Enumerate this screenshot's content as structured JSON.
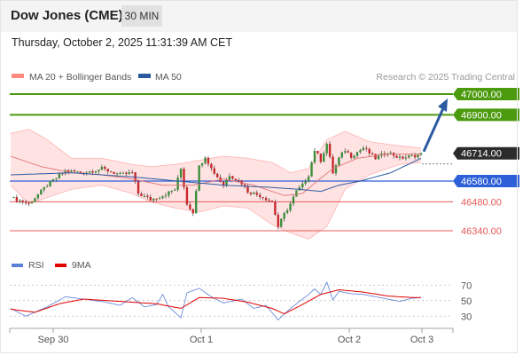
{
  "header": {
    "title": "Dow Jones (CME)",
    "timeframe": "30 MIN"
  },
  "timestamp": "Thursday, October 2, 2025 11:31:39 AM CET",
  "legend": {
    "ma_bb": "MA 20 + Bollinger Bands",
    "ma50": "MA 50",
    "credit": "Research © 2025 Trading Central",
    "rsi": "RSI",
    "ma9": "9MA"
  },
  "colors": {
    "up": "#3b8f3b",
    "down": "#c8282d",
    "ma20_band": "#ff8a80",
    "ma50": "#2c5aa0",
    "resistance": "#4c9a0e",
    "pivot": "#2d5fd8",
    "support": "#e85a5a",
    "rsi": "#5b7fd6",
    "rsi_ma": "#e00000"
  },
  "chart_data": [
    {
      "type": "candlestick",
      "title": "Dow Jones (CME)",
      "y_range": [
        46250,
        47060
      ],
      "x_labels": [
        "Sep 30",
        "Oct 1",
        "Oct 2",
        "Oct 3"
      ],
      "last_price": 46714,
      "levels": [
        {
          "label": "47000.00",
          "value": 47000,
          "kind": "resistance"
        },
        {
          "label": "46900.00",
          "value": 46900,
          "kind": "resistance"
        },
        {
          "label": "46714.00",
          "value": 46714,
          "kind": "last"
        },
        {
          "label": "46580.00",
          "value": 46580,
          "kind": "pivot"
        },
        {
          "label": "46480.00",
          "value": 46480,
          "kind": "support"
        },
        {
          "label": "46340.00",
          "value": 46340,
          "kind": "support"
        }
      ],
      "forecast_target": 47000,
      "close_path": [
        [
          0,
          46500
        ],
        [
          6,
          46470
        ],
        [
          12,
          46560
        ],
        [
          18,
          46630
        ],
        [
          24,
          46620
        ],
        [
          30,
          46640
        ],
        [
          36,
          46610
        ],
        [
          40,
          46620
        ],
        [
          42,
          46520
        ],
        [
          46,
          46490
        ],
        [
          50,
          46510
        ],
        [
          54,
          46540
        ],
        [
          56,
          46640
        ],
        [
          58,
          46470
        ],
        [
          60,
          46430
        ],
        [
          62,
          46650
        ],
        [
          64,
          46700
        ],
        [
          66,
          46640
        ],
        [
          70,
          46560
        ],
        [
          72,
          46610
        ],
        [
          76,
          46570
        ],
        [
          78,
          46530
        ],
        [
          82,
          46510
        ],
        [
          86,
          46480
        ],
        [
          88,
          46360
        ],
        [
          90,
          46420
        ],
        [
          92,
          46470
        ],
        [
          94,
          46530
        ],
        [
          96,
          46560
        ],
        [
          98,
          46610
        ],
        [
          100,
          46730
        ],
        [
          102,
          46680
        ],
        [
          104,
          46760
        ],
        [
          106,
          46620
        ],
        [
          108,
          46690
        ],
        [
          110,
          46730
        ],
        [
          112,
          46700
        ],
        [
          116,
          46740
        ],
        [
          120,
          46690
        ],
        [
          124,
          46720
        ],
        [
          128,
          46690
        ],
        [
          132,
          46700
        ],
        [
          135,
          46710
        ]
      ],
      "ma20": [
        [
          0,
          46700
        ],
        [
          10,
          46650
        ],
        [
          20,
          46620
        ],
        [
          30,
          46610
        ],
        [
          40,
          46590
        ],
        [
          50,
          46560
        ],
        [
          60,
          46560
        ],
        [
          70,
          46590
        ],
        [
          80,
          46560
        ],
        [
          86,
          46530
        ],
        [
          90,
          46510
        ],
        [
          96,
          46520
        ],
        [
          100,
          46570
        ],
        [
          106,
          46640
        ],
        [
          114,
          46690
        ],
        [
          124,
          46710
        ],
        [
          135,
          46710
        ]
      ],
      "bb_upper": [
        [
          0,
          46810
        ],
        [
          6,
          46830
        ],
        [
          12,
          46780
        ],
        [
          20,
          46690
        ],
        [
          30,
          46690
        ],
        [
          40,
          46660
        ],
        [
          46,
          46650
        ],
        [
          54,
          46660
        ],
        [
          62,
          46680
        ],
        [
          70,
          46700
        ],
        [
          78,
          46690
        ],
        [
          86,
          46670
        ],
        [
          92,
          46620
        ],
        [
          98,
          46640
        ],
        [
          104,
          46780
        ],
        [
          110,
          46820
        ],
        [
          118,
          46770
        ],
        [
          128,
          46750
        ],
        [
          135,
          46740
        ]
      ],
      "bb_lower": [
        [
          0,
          46560
        ],
        [
          6,
          46470
        ],
        [
          12,
          46500
        ],
        [
          20,
          46540
        ],
        [
          30,
          46560
        ],
        [
          40,
          46520
        ],
        [
          46,
          46480
        ],
        [
          54,
          46450
        ],
        [
          62,
          46430
        ],
        [
          70,
          46460
        ],
        [
          78,
          46450
        ],
        [
          86,
          46370
        ],
        [
          92,
          46330
        ],
        [
          98,
          46300
        ],
        [
          104,
          46360
        ],
        [
          110,
          46540
        ],
        [
          118,
          46610
        ],
        [
          128,
          46660
        ],
        [
          135,
          46670
        ]
      ],
      "ma50": [
        [
          0,
          46610
        ],
        [
          20,
          46620
        ],
        [
          40,
          46600
        ],
        [
          55,
          46580
        ],
        [
          70,
          46560
        ],
        [
          85,
          46550
        ],
        [
          95,
          46540
        ],
        [
          102,
          46530
        ],
        [
          108,
          46560
        ],
        [
          115,
          46580
        ],
        [
          125,
          46620
        ],
        [
          135,
          46690
        ]
      ]
    },
    {
      "type": "line",
      "title": "RSI",
      "y_range": [
        20,
        76
      ],
      "y_ticks": [
        70,
        50,
        30
      ],
      "series": [
        {
          "name": "RSI",
          "points": [
            [
              0,
              40
            ],
            [
              5,
              30
            ],
            [
              12,
              42
            ],
            [
              18,
              55
            ],
            [
              24,
              52
            ],
            [
              30,
              49
            ],
            [
              36,
              44
            ],
            [
              40,
              54
            ],
            [
              44,
              42
            ],
            [
              48,
              45
            ],
            [
              50,
              58
            ],
            [
              52,
              42
            ],
            [
              56,
              28
            ],
            [
              58,
              60
            ],
            [
              62,
              66
            ],
            [
              66,
              55
            ],
            [
              70,
              47
            ],
            [
              76,
              52
            ],
            [
              80,
              40
            ],
            [
              84,
              44
            ],
            [
              88,
              25
            ],
            [
              90,
              33
            ],
            [
              94,
              46
            ],
            [
              98,
              58
            ],
            [
              100,
              65
            ],
            [
              102,
              58
            ],
            [
              104,
              74
            ],
            [
              106,
              51
            ],
            [
              108,
              62
            ],
            [
              112,
              59
            ],
            [
              116,
              58
            ],
            [
              120,
              55
            ],
            [
              124,
              52
            ],
            [
              128,
              49
            ],
            [
              132,
              53
            ],
            [
              135,
              54
            ]
          ]
        },
        {
          "name": "9MA",
          "points": [
            [
              0,
              39
            ],
            [
              8,
              35
            ],
            [
              16,
              46
            ],
            [
              24,
              52
            ],
            [
              32,
              50
            ],
            [
              40,
              48
            ],
            [
              48,
              46
            ],
            [
              56,
              40
            ],
            [
              62,
              54
            ],
            [
              70,
              53
            ],
            [
              78,
              48
            ],
            [
              86,
              40
            ],
            [
              90,
              33
            ],
            [
              96,
              45
            ],
            [
              102,
              58
            ],
            [
              108,
              64
            ],
            [
              116,
              61
            ],
            [
              124,
              56
            ],
            [
              132,
              54
            ],
            [
              135,
              54
            ]
          ]
        }
      ]
    }
  ]
}
